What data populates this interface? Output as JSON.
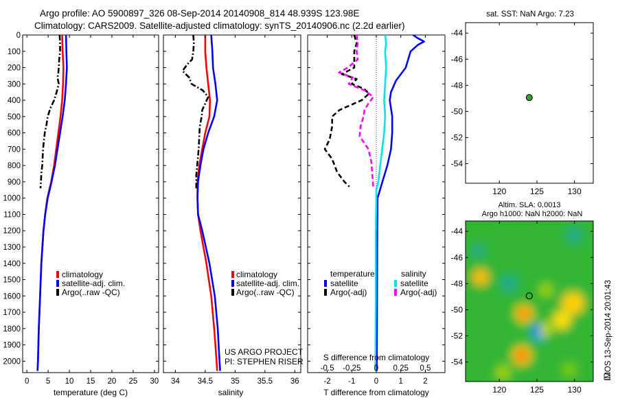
{
  "figure": {
    "title_line1": "Argo profile: AO 5900897_326 08-Sep-2014 20140908_814 48.939S 123.98E",
    "title_line2": "Climatology: CARS2009. Satellite-adjusted climatology: synTS_20140906.nc (2.2d earlier)",
    "project_line1": "US ARGO PROJECT",
    "project_line2": "PI: STEPHEN RISER",
    "side_stamp": "IMOS 13-Sep-2014 20:01:43"
  },
  "colors": {
    "climatology": "#ff0000",
    "satellite": "#0000ff",
    "argo": "#000000",
    "salinity_satellite": "#00e5e5",
    "salinity_argo": "#ff00ff"
  },
  "chart_data": [
    {
      "type": "line",
      "id": "temperature",
      "xlabel": "temperature (deg C)",
      "ylabel": "",
      "xlim": [
        -1,
        31
      ],
      "ylim": [
        2070,
        0
      ],
      "xticks": [
        0,
        5,
        10,
        15,
        20,
        25,
        30
      ],
      "yticks": [
        0,
        100,
        200,
        300,
        400,
        500,
        600,
        700,
        800,
        900,
        1000,
        1100,
        1200,
        1300,
        1400,
        1500,
        1600,
        1700,
        1800,
        1900,
        2000
      ],
      "legend": [
        "climatology",
        "satellite-adj. clim.",
        "Argo(..raw -QC)"
      ],
      "series": [
        {
          "name": "climatology",
          "style": "solid",
          "color": "#ff0000",
          "depth": [
            0,
            100,
            200,
            300,
            400,
            500,
            600,
            700,
            800,
            900,
            1000,
            1100,
            1200,
            1400,
            1600,
            1800,
            2000,
            2060
          ],
          "values": [
            8.3,
            8.4,
            8.6,
            8.5,
            8.3,
            7.9,
            7.4,
            6.9,
            6.4,
            5.7,
            4.8,
            4.3,
            3.9,
            3.4,
            3.1,
            2.8,
            2.6,
            2.5
          ]
        },
        {
          "name": "satellite-adj. clim.",
          "style": "solid",
          "color": "#0000ff",
          "depth": [
            0,
            100,
            200,
            300,
            400,
            500,
            600,
            700,
            800,
            900,
            1000,
            1100,
            1200,
            1400,
            1600,
            1800,
            2000,
            2060
          ],
          "values": [
            9.2,
            9.3,
            9.4,
            9.2,
            8.9,
            8.4,
            7.8,
            7.2,
            6.6,
            5.8,
            4.9,
            4.3,
            3.9,
            3.4,
            3.1,
            2.8,
            2.6,
            2.5
          ]
        },
        {
          "name": "Argo(..raw -QC)",
          "style": "dashdot",
          "color": "#000000",
          "depth": [
            0,
            50,
            100,
            150,
            200,
            230,
            260,
            300,
            350,
            400,
            450,
            500,
            550,
            600,
            650,
            700,
            750,
            800,
            850,
            900,
            940
          ],
          "values": [
            7.7,
            7.8,
            7.8,
            7.6,
            7.5,
            7.4,
            7.2,
            7.5,
            7.0,
            6.4,
            5.5,
            4.9,
            4.6,
            4.2,
            4.0,
            3.8,
            3.7,
            3.6,
            3.4,
            3.3,
            3.2
          ]
        }
      ]
    },
    {
      "type": "line",
      "id": "salinity",
      "xlabel": "salinity",
      "ylabel": "",
      "xlim": [
        33.8,
        36.1
      ],
      "ylim": [
        2070,
        0
      ],
      "xticks": [
        34,
        34.5,
        35,
        35.5,
        36
      ],
      "xtick_labels": [
        "34",
        "34.5",
        "35",
        "35.5",
        "36"
      ],
      "legend": [
        "climatology",
        "satellite-adj. clim.",
        "Argo(..raw -QC)"
      ],
      "series": [
        {
          "name": "climatology",
          "style": "solid",
          "color": "#ff0000",
          "depth": [
            0,
            100,
            200,
            300,
            400,
            500,
            600,
            700,
            800,
            900,
            1000,
            1100,
            1200,
            1400,
            1600,
            1800,
            2000,
            2060
          ],
          "values": [
            34.5,
            34.5,
            34.52,
            34.55,
            34.58,
            34.57,
            34.5,
            34.45,
            34.4,
            34.37,
            34.37,
            34.38,
            34.42,
            34.52,
            34.6,
            34.65,
            34.69,
            34.7
          ]
        },
        {
          "name": "satellite-adj. clim.",
          "style": "solid",
          "color": "#0000ff",
          "depth": [
            0,
            100,
            200,
            300,
            400,
            500,
            600,
            700,
            800,
            900,
            1000,
            1100,
            1200,
            1400,
            1600,
            1800,
            2000,
            2060
          ],
          "values": [
            34.6,
            34.62,
            34.63,
            34.67,
            34.7,
            34.65,
            34.55,
            34.47,
            34.42,
            34.38,
            34.37,
            34.38,
            34.45,
            34.57,
            34.66,
            34.71,
            34.74,
            34.75
          ]
        },
        {
          "name": "Argo(..raw -QC)",
          "style": "dashdot",
          "color": "#000000",
          "depth": [
            0,
            50,
            100,
            150,
            180,
            220,
            260,
            300,
            340,
            380,
            420,
            460,
            500,
            560,
            620,
            700,
            780,
            860,
            940
          ],
          "values": [
            34.3,
            34.31,
            34.3,
            34.28,
            34.2,
            34.12,
            34.23,
            34.27,
            34.46,
            34.55,
            34.5,
            34.45,
            34.44,
            34.41,
            34.4,
            34.39,
            34.37,
            34.35,
            34.35
          ]
        }
      ]
    },
    {
      "type": "line",
      "id": "differences",
      "xlabel": "T difference from climatology",
      "top_xlabel": "S difference from climatology",
      "xlim": [
        -2.8,
        2.8
      ],
      "ylim": [
        2070,
        0
      ],
      "xticks_T": [
        -2,
        -1,
        0,
        1,
        2
      ],
      "xticks_S": [
        -0.5,
        -0.25,
        0,
        0.25,
        0.5
      ],
      "xtick_labels_S": [
        "-0.5",
        "-0.25",
        "0",
        "0.25",
        "0.5"
      ],
      "legend_headers": [
        "temperature",
        "salinity"
      ],
      "legend": [
        "satellite",
        "Argo(-adj)",
        "satellite",
        "Argo(-adj)"
      ],
      "series": [
        {
          "name": "satellite",
          "group": "temperature",
          "style": "solid",
          "color": "#0000ff",
          "depth": [
            0,
            20,
            40,
            60,
            100,
            200,
            280,
            350,
            400,
            500,
            600,
            700,
            800,
            900,
            1000,
            1200,
            1600,
            2060
          ],
          "values": [
            1.5,
            1.7,
            1.95,
            1.7,
            1.4,
            1.2,
            0.8,
            0.6,
            0.55,
            0.65,
            0.65,
            0.6,
            0.45,
            0.25,
            0.05,
            0.04,
            0.03,
            0.02
          ]
        },
        {
          "name": "Argo(-adj)",
          "group": "temperature",
          "style": "dashed",
          "color": "#000000",
          "depth": [
            0,
            50,
            100,
            150,
            200,
            240,
            270,
            300,
            330,
            360,
            400,
            460,
            500,
            560,
            640,
            700,
            760,
            840,
            900,
            930
          ],
          "values": [
            -0.9,
            -0.8,
            -0.9,
            -0.9,
            -0.9,
            -1.4,
            -0.8,
            -1.0,
            -0.5,
            -0.3,
            -0.6,
            -1.5,
            -1.8,
            -1.8,
            -1.9,
            -2.1,
            -1.8,
            -1.6,
            -1.3,
            -1.1
          ]
        },
        {
          "name": "satellite",
          "group": "salinity",
          "style": "solid",
          "color": "#00e5e5",
          "depth": [
            0,
            50,
            100,
            200,
            300,
            400,
            500,
            600,
            700,
            800,
            900,
            950,
            1000,
            1200,
            1600,
            2060
          ],
          "values": [
            0.09,
            0.1,
            0.09,
            0.1,
            0.09,
            0.08,
            0.09,
            0.08,
            0.06,
            0.04,
            0.02,
            0.0,
            0.0,
            -0.005,
            -0.005,
            -0.01
          ]
        },
        {
          "name": "Argo(-adj)",
          "group": "salinity",
          "style": "dashed",
          "color": "#ff00ff",
          "depth": [
            0,
            50,
            100,
            150,
            200,
            230,
            260,
            300,
            340,
            380,
            420,
            460,
            500,
            560,
            620,
            700,
            780,
            860,
            940
          ],
          "values": [
            -0.2,
            -0.19,
            -0.2,
            -0.19,
            -0.29,
            -0.38,
            -0.24,
            -0.28,
            -0.12,
            -0.03,
            -0.08,
            -0.12,
            -0.13,
            -0.16,
            -0.17,
            -0.08,
            -0.05,
            -0.04,
            -0.03
          ]
        }
      ]
    },
    {
      "type": "scatter",
      "id": "location-map",
      "title": "sat. SST: NaN Argo: 7.23",
      "xlim": [
        115.5,
        132.5
      ],
      "ylim": [
        -55.5,
        -43.2
      ],
      "xticks": [
        120,
        125,
        130
      ],
      "yticks": [
        -44,
        -46,
        -48,
        -50,
        -52,
        -54
      ],
      "points": [
        {
          "x": 123.98,
          "y": -48.939
        }
      ]
    },
    {
      "type": "heatmap",
      "id": "sla-map",
      "title_line1": "Altim. SLA: 0.0013",
      "title_line2": "Argo h1000: NaN h2000: NaN",
      "xlim": [
        115.5,
        132.5
      ],
      "ylim": [
        -55.5,
        -43.2
      ],
      "xticks": [
        120,
        125,
        130
      ],
      "yticks": [
        -44,
        -46,
        -48,
        -50,
        -52,
        -54
      ],
      "base_color": "#33b536",
      "blobs": [
        {
          "x": 117.5,
          "y": -47.5,
          "r": 1.1,
          "color": "#ffbb00",
          "label": "warm"
        },
        {
          "x": 123.3,
          "y": -50.3,
          "r": 0.7,
          "color": "#ff3300",
          "label": "warm"
        },
        {
          "x": 123.3,
          "y": -50.3,
          "r": 1.2,
          "color": "#ffe000",
          "label": "warm"
        },
        {
          "x": 123.0,
          "y": -53.5,
          "r": 0.7,
          "color": "#ff3300",
          "label": "warm"
        },
        {
          "x": 123.0,
          "y": -53.5,
          "r": 1.3,
          "color": "#ffd000",
          "label": "warm"
        },
        {
          "x": 129.8,
          "y": -49.5,
          "r": 1.5,
          "color": "#ffd000",
          "label": "warm"
        },
        {
          "x": 128.3,
          "y": -50.8,
          "r": 1.2,
          "color": "#ffe000",
          "label": "warm"
        },
        {
          "x": 126.0,
          "y": -51.5,
          "r": 0.9,
          "color": "#cce000",
          "label": "warm"
        },
        {
          "x": 125.0,
          "y": -51.5,
          "r": 0.6,
          "color": "#0055ff",
          "label": "cool"
        },
        {
          "x": 125.3,
          "y": -51.8,
          "r": 1.0,
          "color": "#00aadd",
          "label": "cool"
        },
        {
          "x": 121.3,
          "y": -48.0,
          "r": 1.2,
          "color": "#22aa88",
          "label": "cool"
        },
        {
          "x": 130.0,
          "y": -44.3,
          "r": 1.1,
          "color": "#22aa88",
          "label": "cool"
        },
        {
          "x": 117.2,
          "y": -45.5,
          "r": 0.9,
          "color": "#22aa88",
          "label": "cool"
        },
        {
          "x": 126.2,
          "y": -48.5,
          "r": 0.9,
          "color": "#9ed400",
          "label": "warm"
        },
        {
          "x": 120.5,
          "y": -54.8,
          "r": 1.0,
          "color": "#9ed400",
          "label": "warm"
        },
        {
          "x": 129.3,
          "y": -54.6,
          "r": 1.0,
          "color": "#77cc00",
          "label": "warm"
        }
      ],
      "points": [
        {
          "x": 123.98,
          "y": -48.939
        }
      ]
    }
  ]
}
